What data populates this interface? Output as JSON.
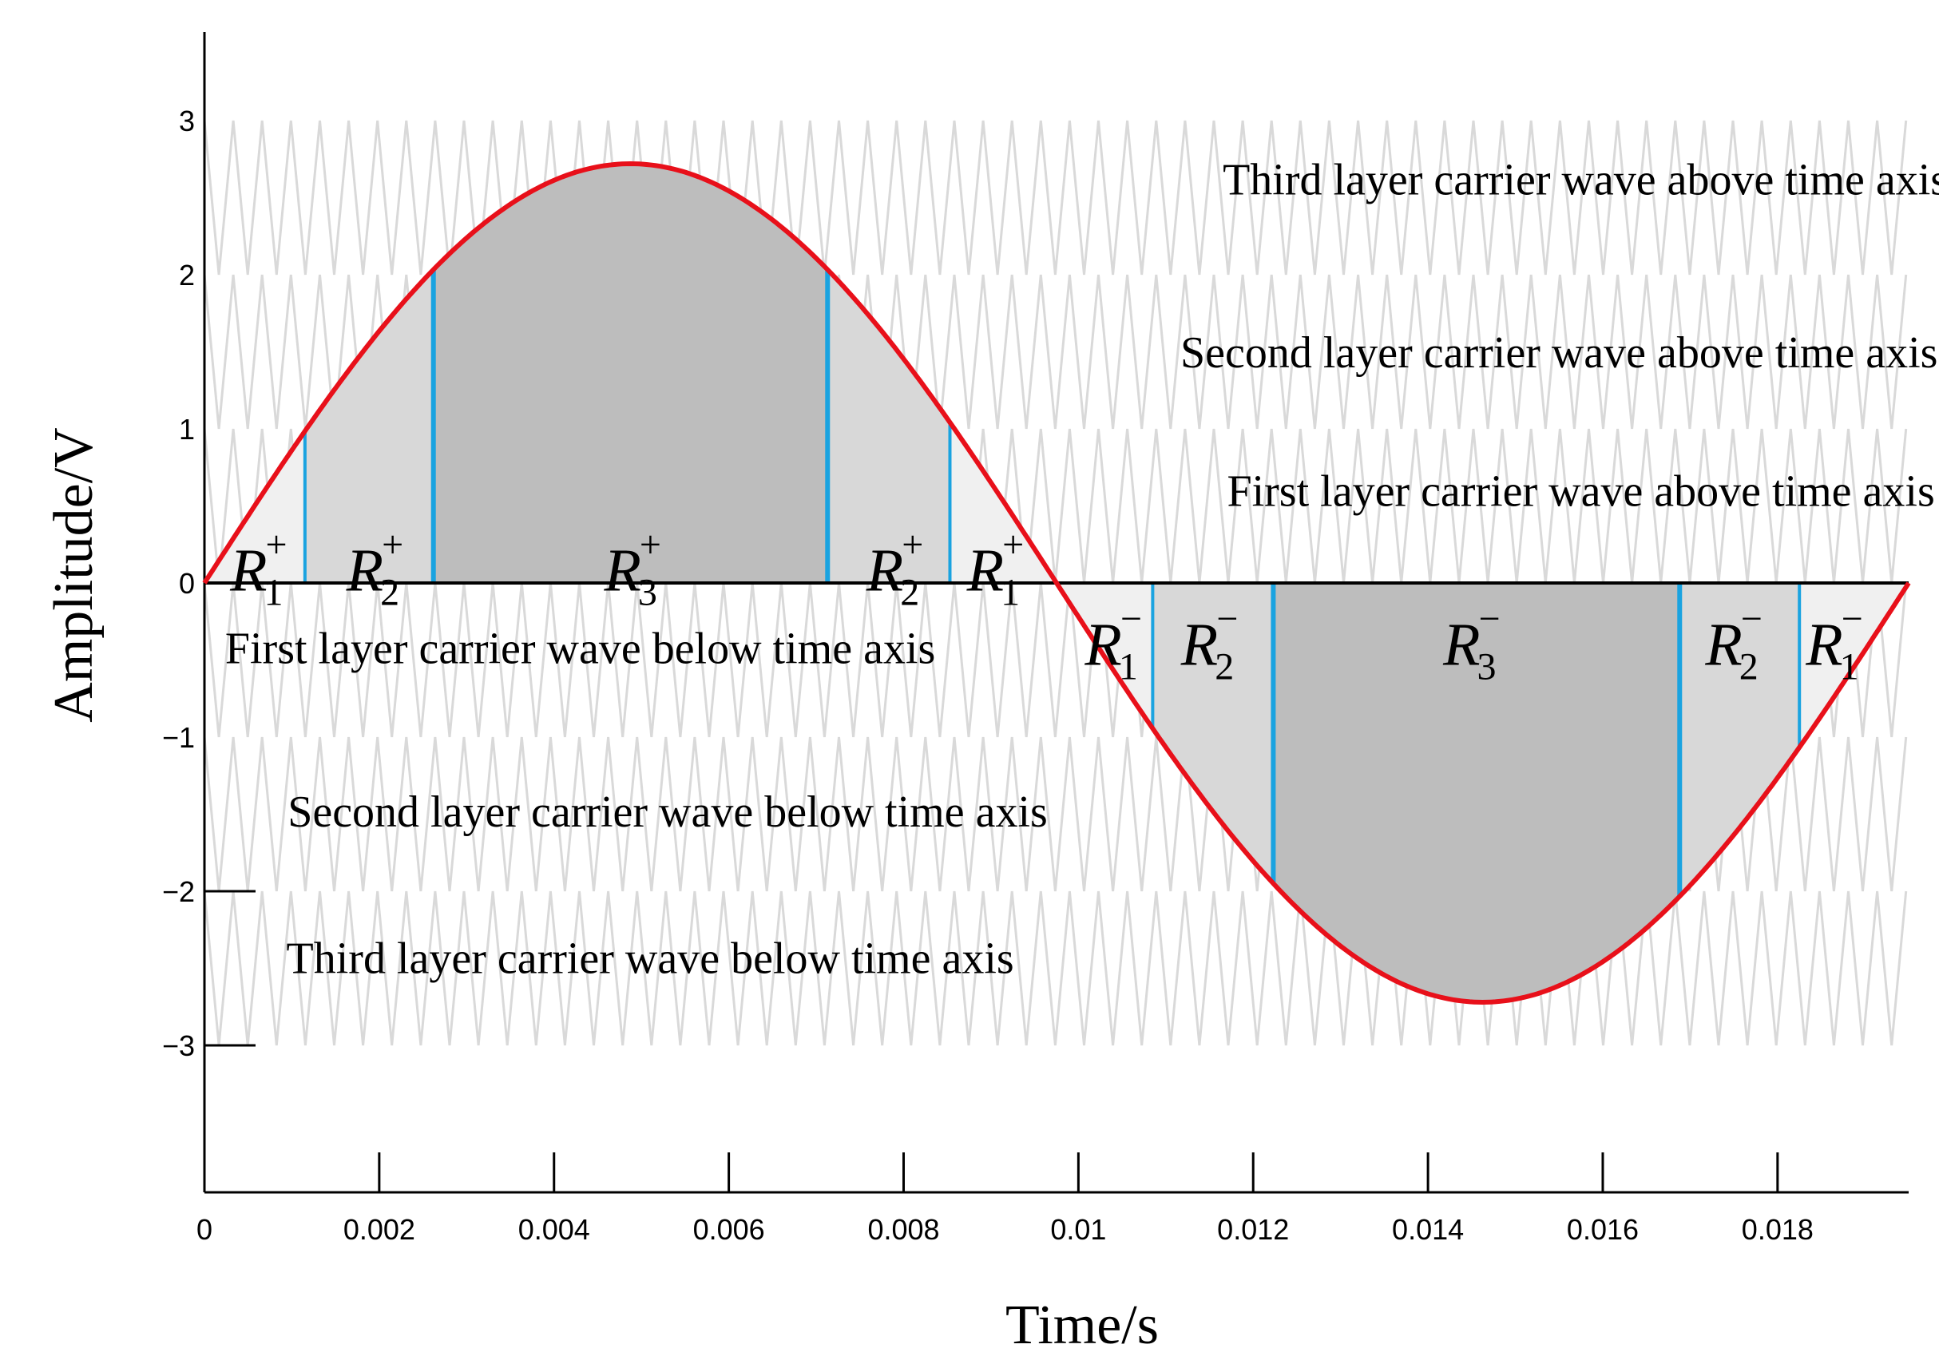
{
  "chart_data": {
    "type": "line",
    "title": "",
    "xlabel": "Time/s",
    "ylabel": "Amplitude/V",
    "xlim": [
      0,
      0.0195
    ],
    "ylim": [
      -3.6,
      3.6
    ],
    "x_ticks": [
      {
        "value": 0,
        "label": "0"
      },
      {
        "value": 0.002,
        "label": "0.002"
      },
      {
        "value": 0.004,
        "label": "0.004"
      },
      {
        "value": 0.006,
        "label": "0.006"
      },
      {
        "value": 0.008,
        "label": "0.008"
      },
      {
        "value": 0.01,
        "label": "0.01"
      },
      {
        "value": 0.012,
        "label": "0.012"
      },
      {
        "value": 0.014,
        "label": "0.014"
      },
      {
        "value": 0.016,
        "label": "0.016"
      },
      {
        "value": 0.018,
        "label": "0.018"
      }
    ],
    "y_ticks": [
      {
        "value": 3,
        "label": "3"
      },
      {
        "value": 2,
        "label": "2"
      },
      {
        "value": 1,
        "label": "1"
      },
      {
        "value": 0,
        "label": "0"
      },
      {
        "value": -1,
        "label": "−1"
      },
      {
        "value": -2,
        "label": "−2"
      },
      {
        "value": -3,
        "label": "−3"
      }
    ],
    "modulating_wave": {
      "amplitude": 2.72,
      "period": 0.0195,
      "color": "#e8101a"
    },
    "carrier_waves": {
      "layers": [
        {
          "min": 2,
          "max": 3
        },
        {
          "min": 1,
          "max": 2
        },
        {
          "min": 0,
          "max": 1
        },
        {
          "min": -1,
          "max": 0
        },
        {
          "min": -2,
          "max": -1
        },
        {
          "min": -3,
          "max": -2
        }
      ],
      "period": 0.00033,
      "color": "#d9d9d9"
    },
    "band_labels": [
      {
        "text": "Third layer carrier wave above time axis",
        "x": 0.0158,
        "y": 2.52,
        "anchor": "middle"
      },
      {
        "text": "Second layer carrier wave above time axis",
        "x": 0.0155,
        "y": 1.4,
        "anchor": "middle"
      },
      {
        "text": "First layer carrier wave above time axis",
        "x": 0.01575,
        "y": 0.5,
        "anchor": "middle"
      },
      {
        "text": "First layer carrier wave below time axis",
        "x": 0.0043,
        "y": -0.52,
        "anchor": "middle"
      },
      {
        "text": "Second layer carrier wave below time axis",
        "x": 0.0053,
        "y": -1.58,
        "anchor": "middle"
      },
      {
        "text": "Third layer carrier wave below time axis",
        "x": 0.0051,
        "y": -2.53,
        "anchor": "middle"
      }
    ],
    "regions": [
      {
        "label": "R",
        "sub": "1",
        "sup": "+",
        "x0": 0.0,
        "x1": 0.00115,
        "level": 0.0,
        "color": "#f0f0f0",
        "label_x": 0.00062,
        "label_y": -0.05
      },
      {
        "label": "R",
        "sub": "2",
        "sup": "+",
        "x0": 0.00115,
        "x1": 0.00262,
        "level": 1.0,
        "color": "#d8d8d8",
        "label_x": 0.00195,
        "label_y": -0.05
      },
      {
        "label": "R",
        "sub": "3",
        "sup": "+",
        "x0": 0.00262,
        "x1": 0.00713,
        "level": 2.0,
        "color": "#bdbdbd",
        "label_x": 0.0049,
        "label_y": -0.05
      },
      {
        "label": "R",
        "sub": "2",
        "sup": "+",
        "x0": 0.00713,
        "x1": 0.00853,
        "level": 1.0,
        "color": "#d8d8d8",
        "label_x": 0.0079,
        "label_y": -0.05
      },
      {
        "label": "R",
        "sub": "1",
        "sup": "+",
        "x0": 0.00853,
        "x1": 0.00975,
        "level": 0.0,
        "color": "#f0f0f0",
        "label_x": 0.00905,
        "label_y": -0.05
      },
      {
        "label": "R",
        "sub": "1",
        "sup": "−",
        "x0": 0.00975,
        "x1": 0.01085,
        "level": 0.0,
        "color": "#f0f0f0",
        "label_x": 0.0104,
        "label_y": -0.53
      },
      {
        "label": "R",
        "sub": "2",
        "sup": "−",
        "x0": 0.01085,
        "x1": 0.01223,
        "level": 1.0,
        "color": "#d8d8d8",
        "label_x": 0.0115,
        "label_y": -0.53
      },
      {
        "label": "R",
        "sub": "3",
        "sup": "−",
        "x0": 0.01223,
        "x1": 0.01688,
        "level": 2.0,
        "color": "#bdbdbd",
        "label_x": 0.0145,
        "label_y": -0.53
      },
      {
        "label": "R",
        "sub": "2",
        "sup": "−",
        "x0": 0.01688,
        "x1": 0.01825,
        "level": 1.0,
        "color": "#d8d8d8",
        "label_x": 0.0175,
        "label_y": -0.53
      },
      {
        "label": "R",
        "sub": "1",
        "sup": "−",
        "x0": 0.01825,
        "x1": 0.0195,
        "level": 0.0,
        "color": "#f0f0f0",
        "label_x": 0.01865,
        "label_y": -0.53
      }
    ],
    "boundaries": [
      0.00115,
      0.00262,
      0.00713,
      0.00853,
      0.01085,
      0.01223,
      0.01688,
      0.01825
    ],
    "boundary_color": "#1aa3e0",
    "grid": false,
    "legend": "none"
  }
}
